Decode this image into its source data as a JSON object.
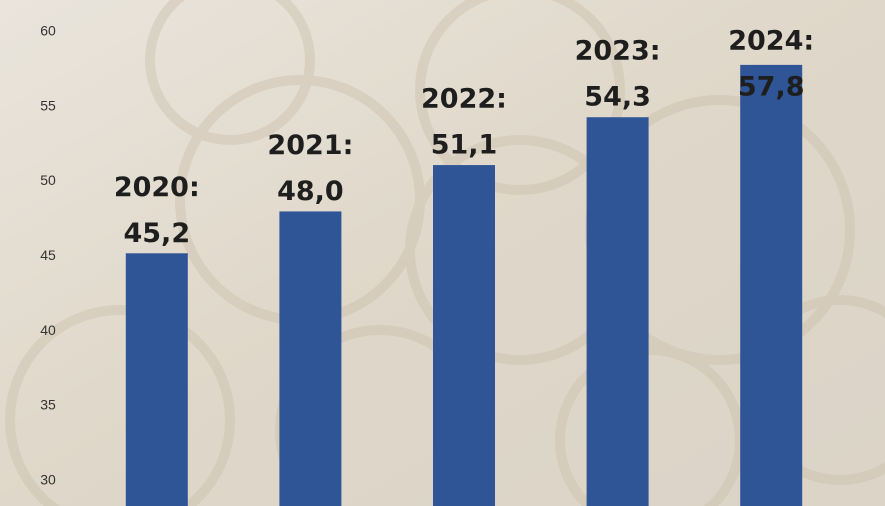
{
  "chart_data": {
    "type": "bar",
    "categories": [
      "2020:",
      "2021:",
      "2022:",
      "2023:",
      "2024:"
    ],
    "values": [
      45.2,
      48.0,
      51.1,
      54.3,
      57.8
    ],
    "value_labels": [
      "45,2",
      "48,0",
      "51,1",
      "54,3",
      "57,8"
    ],
    "color": "#2f5597",
    "ylim": [
      28.3,
      60
    ],
    "yticks": [
      30,
      35,
      40,
      45,
      50,
      55,
      60
    ],
    "grid": false
  }
}
